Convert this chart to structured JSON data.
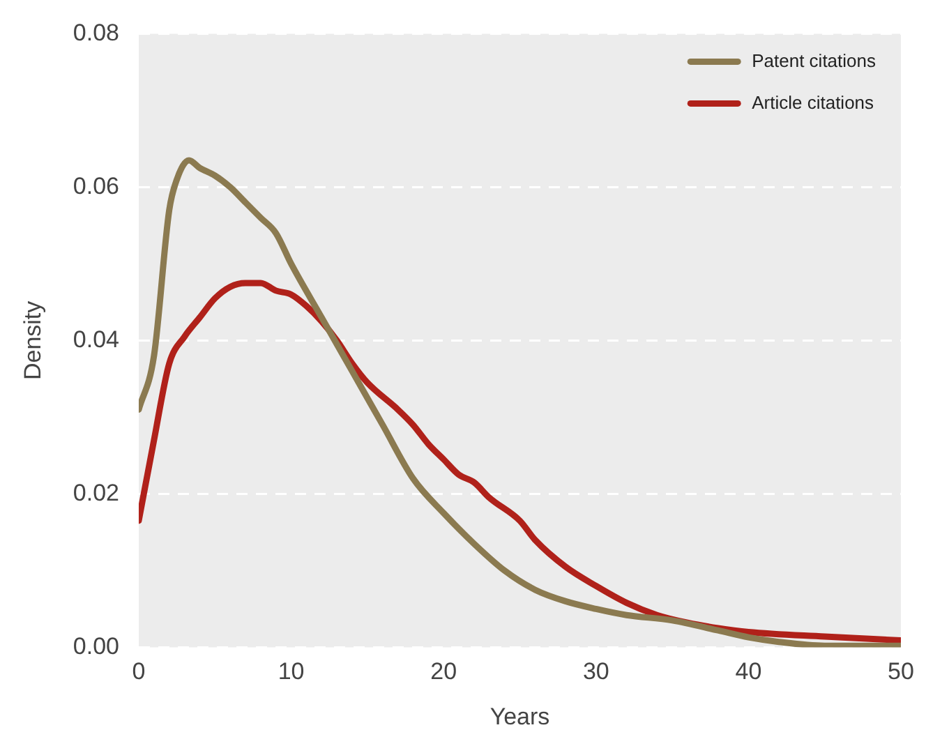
{
  "chart_data": {
    "type": "line",
    "xlabel": "Years",
    "ylabel": "Density",
    "xlim": [
      0,
      50
    ],
    "xticks": [
      0,
      10,
      20,
      30,
      40,
      50
    ],
    "ylim": [
      0,
      0.08
    ],
    "yticks": [
      {
        "value": 0,
        "label": "0.00"
      },
      {
        "value": 0.02,
        "label": "0.02"
      },
      {
        "value": 0.04,
        "label": "0.04"
      },
      {
        "value": 0.06,
        "label": "0.06"
      },
      {
        "value": 0.08,
        "label": "0.08"
      }
    ],
    "grid": "y",
    "legend": "top right",
    "marker": "none",
    "line_style": "solid",
    "series": [
      {
        "name": "Patent citations",
        "color": "#8b7a50",
        "x": [
          0,
          1,
          2,
          2.5,
          3.3,
          4,
          5,
          6,
          7,
          8,
          9,
          10,
          12,
          14,
          16,
          18,
          20,
          22,
          24,
          26,
          28,
          30,
          32,
          35,
          38,
          40,
          42,
          45,
          50
        ],
        "values": [
          0.031,
          0.038,
          0.057,
          0.061,
          0.0635,
          0.0625,
          0.0615,
          0.06,
          0.058,
          0.056,
          0.054,
          0.05,
          0.043,
          0.036,
          0.029,
          0.022,
          0.0175,
          0.0135,
          0.01,
          0.0075,
          0.006,
          0.005,
          0.0042,
          0.0035,
          0.0022,
          0.0013,
          0.0007,
          0.0002,
          0.0002
        ]
      },
      {
        "name": "Article citations",
        "color": "#b0211a",
        "x": [
          0,
          1,
          2,
          3,
          4,
          5,
          6,
          7,
          8,
          9,
          10,
          11,
          12,
          13,
          14,
          15,
          17,
          18,
          19,
          20,
          21,
          22,
          23,
          25,
          26,
          28,
          30,
          32,
          34,
          36,
          38,
          40,
          45,
          50
        ],
        "values": [
          0.0165,
          0.027,
          0.037,
          0.0405,
          0.043,
          0.0455,
          0.047,
          0.0475,
          0.0475,
          0.0465,
          0.046,
          0.0445,
          0.0425,
          0.04,
          0.037,
          0.0345,
          0.031,
          0.029,
          0.0265,
          0.0245,
          0.0225,
          0.0215,
          0.0195,
          0.0165,
          0.014,
          0.0105,
          0.008,
          0.0058,
          0.0042,
          0.0032,
          0.0025,
          0.002,
          0.0014,
          0.0009
        ]
      }
    ]
  }
}
